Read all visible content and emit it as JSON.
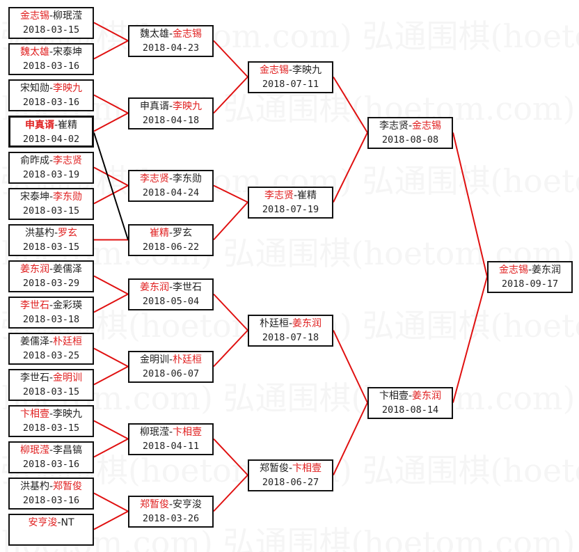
{
  "watermark": "弘通围棋(hoetom.com)",
  "colors": {
    "winner": "#e02020",
    "line": "#e01010",
    "highlight_line": "#000000"
  },
  "rounds": [
    [
      {
        "p1": "金志锡",
        "p2": "柳珉滢",
        "winner": 1,
        "date": "2018-03-15"
      },
      {
        "p1": "魏太雄",
        "p2": "宋泰坤",
        "winner": 1,
        "date": "2018-03-16"
      },
      {
        "p1": "宋知勋",
        "p2": "李映九",
        "winner": 2,
        "date": "2018-03-16"
      },
      {
        "p1": "申真谞",
        "p2": "崔精",
        "winner": 1,
        "date": "2018-04-02",
        "highlight": true
      },
      {
        "p1": "俞昨成",
        "p2": "李志贤",
        "winner": 2,
        "date": "2018-03-19"
      },
      {
        "p1": "宋泰坤",
        "p2": "李东勋",
        "winner": 2,
        "date": "2018-03-15"
      },
      {
        "p1": "洪基杓",
        "p2": "罗玄",
        "winner": 2,
        "date": "2018-03-15"
      },
      {
        "p1": "姜东润",
        "p2": "姜儒泽",
        "winner": 1,
        "date": "2018-03-29"
      },
      {
        "p1": "李世石",
        "p2": "金彩瑛",
        "winner": 1,
        "date": "2018-03-18"
      },
      {
        "p1": "姜儒泽",
        "p2": "朴廷桓",
        "winner": 2,
        "date": "2018-03-25"
      },
      {
        "p1": "李世石",
        "p2": "金明训",
        "winner": 2,
        "date": "2018-03-15"
      },
      {
        "p1": "卞相壹",
        "p2": "李映九",
        "winner": 1,
        "date": "2018-03-15"
      },
      {
        "p1": "柳珉滢",
        "p2": "李昌镐",
        "winner": 1,
        "date": "2018-03-16"
      },
      {
        "p1": "洪基杓",
        "p2": "郑暂俊",
        "winner": 2,
        "date": "2018-03-16"
      },
      {
        "p1": "安亨浚",
        "p2": "NT",
        "winner": 1,
        "date": ""
      }
    ],
    [
      {
        "p1": "魏太雄",
        "p2": "金志锡",
        "winner": 2,
        "date": "2018-04-23"
      },
      {
        "p1": "申真谞",
        "p2": "李映九",
        "winner": 2,
        "date": "2018-04-18"
      },
      {
        "p1": "李志贤",
        "p2": "李东勋",
        "winner": 1,
        "date": "2018-04-24"
      },
      {
        "p1": "崔精",
        "p2": "罗玄",
        "winner": 1,
        "date": "2018-06-22"
      },
      {
        "p1": "姜东润",
        "p2": "李世石",
        "winner": 1,
        "date": "2018-05-04"
      },
      {
        "p1": "金明训",
        "p2": "朴廷桓",
        "winner": 2,
        "date": "2018-06-07"
      },
      {
        "p1": "柳珉滢",
        "p2": "卞相壹",
        "winner": 2,
        "date": "2018-04-11"
      },
      {
        "p1": "郑暂俊",
        "p2": "安亨浚",
        "winner": 1,
        "date": "2018-03-26"
      }
    ],
    [
      {
        "p1": "金志锡",
        "p2": "李映九",
        "winner": 1,
        "date": "2018-07-11"
      },
      {
        "p1": "李志贤",
        "p2": "崔精",
        "winner": 1,
        "date": "2018-07-19"
      },
      {
        "p1": "朴廷桓",
        "p2": "姜东润",
        "winner": 2,
        "date": "2018-07-18"
      },
      {
        "p1": "郑暂俊",
        "p2": "卞相壹",
        "winner": 2,
        "date": "2018-06-27"
      }
    ],
    [
      {
        "p1": "李志贤",
        "p2": "金志锡",
        "winner": 2,
        "date": "2018-08-08"
      },
      {
        "p1": "卞相壹",
        "p2": "姜东润",
        "winner": 2,
        "date": "2018-08-14"
      }
    ],
    [
      {
        "p1": "金志锡",
        "p2": "姜东润",
        "winner": 1,
        "date": "2018-09-17"
      }
    ]
  ]
}
